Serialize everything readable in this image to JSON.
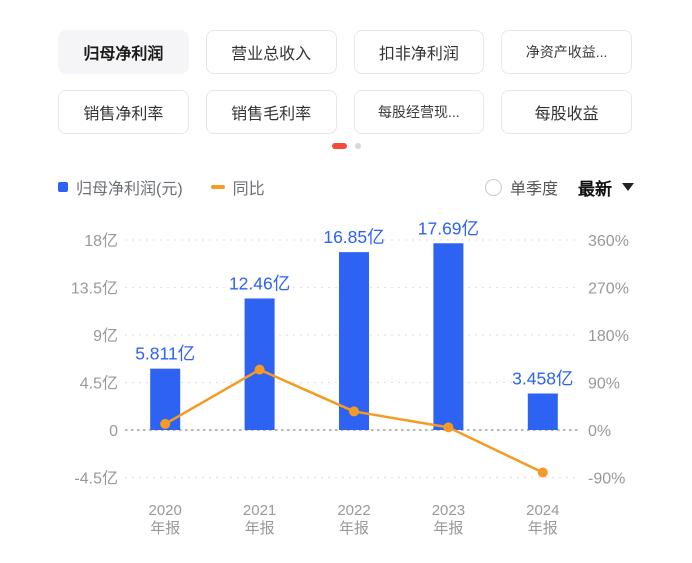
{
  "tabs": {
    "row1": [
      {
        "label": "归母净利润",
        "selected": true
      },
      {
        "label": "营业总收入",
        "selected": false
      },
      {
        "label": "扣非净利润",
        "selected": false
      },
      {
        "label": "净资产收益...",
        "selected": false,
        "small": true
      }
    ],
    "row2": [
      {
        "label": "销售净利率",
        "selected": false
      },
      {
        "label": "销售毛利率",
        "selected": false
      },
      {
        "label": "每股经营现...",
        "selected": false,
        "small": true
      },
      {
        "label": "每股收益",
        "selected": false
      }
    ]
  },
  "pagination": {
    "pages": 2,
    "active_page": 1
  },
  "legend": {
    "bar": {
      "label": "归母净利润(元)"
    },
    "line": {
      "label": "同比"
    }
  },
  "controls": {
    "radio_label": "单季度",
    "radio_checked": false,
    "dropdown_label": "最新"
  },
  "colors": {
    "bar_blue": "#2d62f3",
    "line_orange": "#f59a23",
    "active_dot_red": "#f8483e",
    "inactive_dot_gray": "#d9d9d9",
    "axis_text_gray": "#999999"
  },
  "chart_data": {
    "type": "bar+line",
    "categories": [
      "2020",
      "2021",
      "2022",
      "2023",
      "2024"
    ],
    "category_suffix": "年报",
    "bar_series": {
      "name": "归母净利润(元)",
      "unit": "亿",
      "values": [
        5.811,
        12.46,
        16.85,
        17.69,
        3.458
      ],
      "labels": [
        "5.811亿",
        "12.46亿",
        "16.85亿",
        "17.69亿",
        "3.458亿"
      ],
      "color": "#2d62f3"
    },
    "line_series": {
      "name": "同比",
      "unit": "%",
      "values_pct": [
        11.5,
        114.4,
        35.2,
        5.0,
        -80.5
      ],
      "color": "#f59a23"
    },
    "left_axis": {
      "unit": "亿",
      "ticks": [
        "18亿",
        "13.5亿",
        "9亿",
        "4.5亿",
        "0",
        "-4.5亿"
      ],
      "values": [
        18,
        13.5,
        9,
        4.5,
        0,
        -4.5
      ],
      "range": [
        -4.5,
        18
      ]
    },
    "right_axis": {
      "unit": "%",
      "ticks": [
        "360%",
        "270%",
        "180%",
        "90%",
        "0%",
        "-90%"
      ],
      "values": [
        360,
        270,
        180,
        90,
        0,
        -90
      ],
      "range": [
        -90,
        360
      ]
    },
    "grid": "dashed-horizontal",
    "legend_position": "top-left"
  }
}
